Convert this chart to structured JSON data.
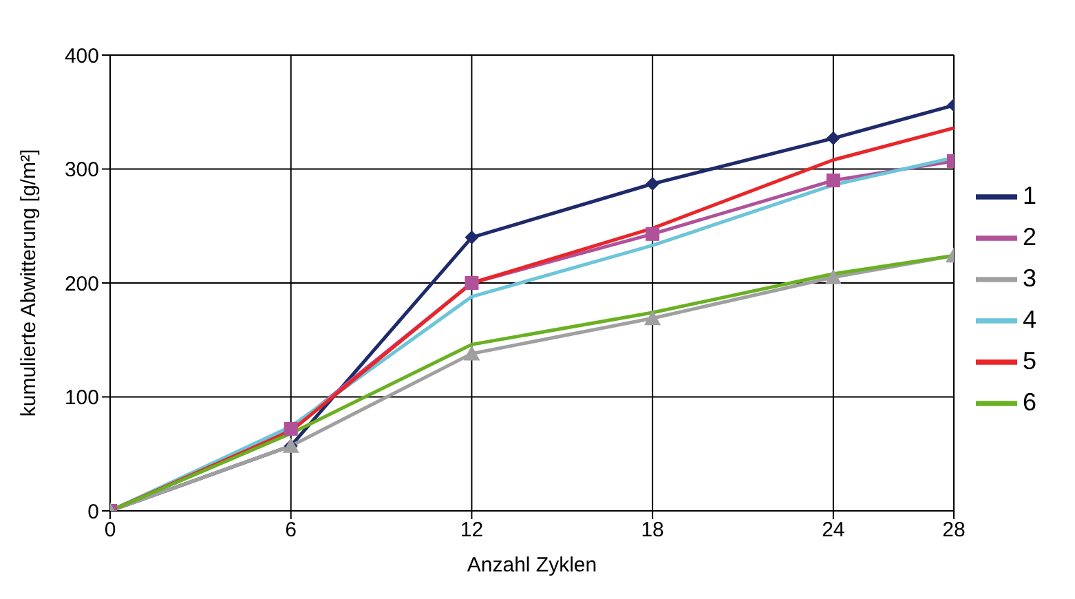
{
  "chart_data": {
    "type": "line",
    "xlabel": "Anzahl Zyklen",
    "ylabel": "kumulierte Abwitterung [g/m²]",
    "x": [
      0,
      6,
      12,
      18,
      24,
      28
    ],
    "xlim": [
      0,
      28
    ],
    "xticks": [
      0,
      6,
      12,
      18,
      24,
      28
    ],
    "ylim": [
      0,
      400
    ],
    "yticks": [
      0,
      100,
      200,
      300,
      400
    ],
    "grid": true,
    "legend": "right",
    "series": [
      {
        "name": "1",
        "color": "#1f2a6b",
        "marker": "diamond",
        "values": [
          0,
          57,
          240,
          287,
          327,
          356
        ]
      },
      {
        "name": "2",
        "color": "#b0529a",
        "marker": "square",
        "values": [
          0,
          72,
          200,
          243,
          290,
          307
        ]
      },
      {
        "name": "3",
        "color": "#a0a0a0",
        "marker": "triangle",
        "values": [
          0,
          57,
          138,
          169,
          205,
          224
        ]
      },
      {
        "name": "4",
        "color": "#6cc5d9",
        "marker": "none",
        "values": [
          0,
          74,
          188,
          233,
          286,
          310
        ]
      },
      {
        "name": "5",
        "color": "#e8262a",
        "marker": "none",
        "values": [
          0,
          70,
          200,
          248,
          308,
          336
        ]
      },
      {
        "name": "6",
        "color": "#6ab023",
        "marker": "none",
        "values": [
          0,
          68,
          146,
          174,
          208,
          224
        ]
      }
    ]
  }
}
